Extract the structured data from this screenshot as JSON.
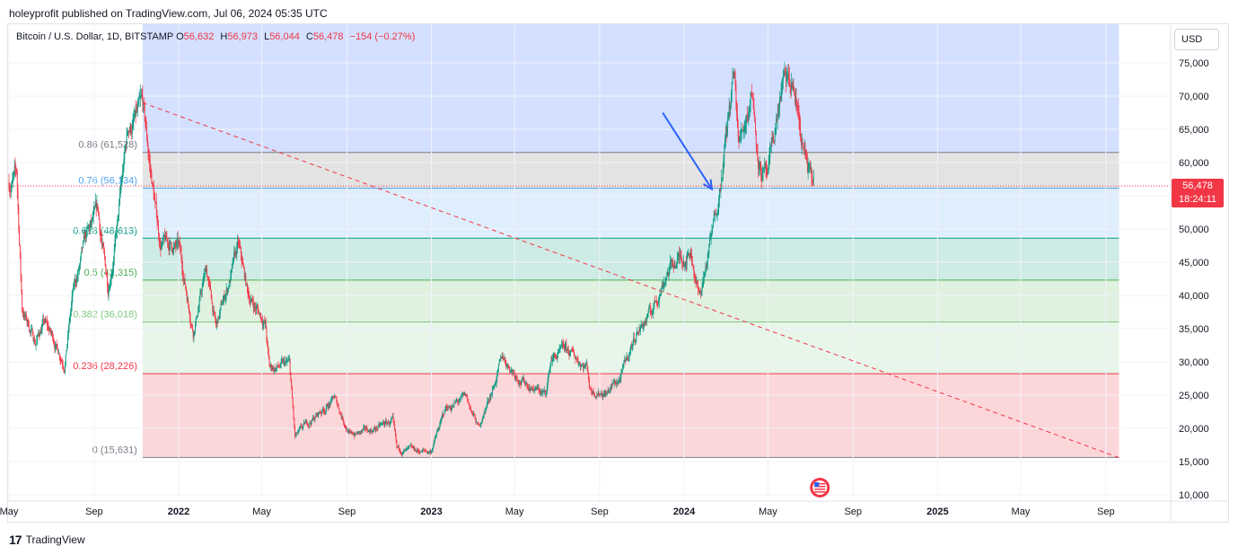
{
  "header": {
    "published_by": "holeyprofit published on TradingView.com, Jul 06, 2024 05:35 UTC"
  },
  "legend": {
    "symbol": "Bitcoin / U.S. Dollar, 1D, BITSTAMP",
    "o_label": "O",
    "o": "56,632",
    "h_label": "H",
    "h": "56,973",
    "l_label": "L",
    "l": "56,044",
    "c_label": "C",
    "c": "56,478",
    "change": "−154 (−0.27%)"
  },
  "currency_button": "USD",
  "price_tag": {
    "price": "56,478",
    "countdown": "18:24:11"
  },
  "footer": {
    "brand": "TradingView",
    "logo_glyph": "17"
  },
  "colors": {
    "up": "#089981",
    "down": "#f23645",
    "arrow": "#2962ff",
    "trendline": "#f23645"
  },
  "chart_data": {
    "type": "candlestick",
    "symbol": "BTCUSD",
    "interval": "1D",
    "ylim": [
      10000,
      78000
    ],
    "y_ticks": [
      10000,
      15000,
      20000,
      25000,
      30000,
      35000,
      40000,
      45000,
      50000,
      55000,
      60000,
      65000,
      70000,
      75000
    ],
    "y_tick_labels": [
      "10,000",
      "15,000",
      "20,000",
      "25,000",
      "30,000",
      "35,000",
      "40,000",
      "45,000",
      "50,000",
      "55,000",
      "60,000",
      "65,000",
      "70,000",
      "75,000"
    ],
    "x_range": [
      "2021-05-01",
      "2025-12-01"
    ],
    "x_ticks": [
      {
        "date": "2021-05-01",
        "label": "May",
        "bold": false
      },
      {
        "date": "2021-09-01",
        "label": "Sep",
        "bold": false
      },
      {
        "date": "2022-01-01",
        "label": "2022",
        "bold": true
      },
      {
        "date": "2022-05-01",
        "label": "May",
        "bold": false
      },
      {
        "date": "2022-09-01",
        "label": "Sep",
        "bold": false
      },
      {
        "date": "2023-01-01",
        "label": "2023",
        "bold": true
      },
      {
        "date": "2023-05-01",
        "label": "May",
        "bold": false
      },
      {
        "date": "2023-09-01",
        "label": "Sep",
        "bold": false
      },
      {
        "date": "2024-01-01",
        "label": "2024",
        "bold": true
      },
      {
        "date": "2024-05-01",
        "label": "May",
        "bold": false
      },
      {
        "date": "2024-09-01",
        "label": "Sep",
        "bold": false
      },
      {
        "date": "2025-01-01",
        "label": "2025",
        "bold": true
      },
      {
        "date": "2025-05-01",
        "label": "May",
        "bold": false
      },
      {
        "date": "2025-09-01",
        "label": "Sep",
        "bold": false
      }
    ],
    "last_price": 56478,
    "price_path": [
      [
        "2021-05-01",
        57000
      ],
      [
        "2021-05-12",
        58000
      ],
      [
        "2021-05-20",
        38000
      ],
      [
        "2021-06-08",
        33000
      ],
      [
        "2021-06-20",
        36000
      ],
      [
        "2021-07-01",
        34000
      ],
      [
        "2021-07-20",
        30000
      ],
      [
        "2021-08-01",
        40000
      ],
      [
        "2021-08-20",
        48000
      ],
      [
        "2021-09-06",
        52000
      ],
      [
        "2021-09-21",
        41000
      ],
      [
        "2021-10-05",
        51000
      ],
      [
        "2021-10-20",
        65000
      ],
      [
        "2021-11-10",
        67500
      ],
      [
        "2021-11-26",
        55000
      ],
      [
        "2021-12-05",
        48000
      ],
      [
        "2022-01-01",
        47000
      ],
      [
        "2022-01-22",
        35000
      ],
      [
        "2022-02-10",
        44000
      ],
      [
        "2022-02-24",
        35000
      ],
      [
        "2022-03-28",
        47000
      ],
      [
        "2022-04-11",
        40000
      ],
      [
        "2022-05-06",
        36000
      ],
      [
        "2022-05-12",
        29000
      ],
      [
        "2022-06-10",
        29500
      ],
      [
        "2022-06-18",
        18500
      ],
      [
        "2022-07-10",
        21000
      ],
      [
        "2022-08-14",
        24500
      ],
      [
        "2022-09-06",
        19000
      ],
      [
        "2022-10-01",
        19500
      ],
      [
        "2022-11-06",
        21000
      ],
      [
        "2022-11-12",
        16500
      ],
      [
        "2022-12-31",
        16500
      ],
      [
        "2023-01-22",
        23000
      ],
      [
        "2023-02-20",
        24500
      ],
      [
        "2023-03-10",
        20000
      ],
      [
        "2023-04-14",
        30500
      ],
      [
        "2023-05-15",
        27000
      ],
      [
        "2023-06-15",
        25000
      ],
      [
        "2023-06-23",
        30500
      ],
      [
        "2023-07-14",
        31500
      ],
      [
        "2023-08-14",
        29500
      ],
      [
        "2023-08-18",
        26000
      ],
      [
        "2023-09-11",
        25500
      ],
      [
        "2023-10-01",
        27500
      ],
      [
        "2023-10-24",
        34500
      ],
      [
        "2023-11-15",
        37500
      ],
      [
        "2023-12-08",
        44000
      ],
      [
        "2024-01-11",
        47000
      ],
      [
        "2024-01-23",
        39500
      ],
      [
        "2024-02-12",
        50000
      ],
      [
        "2024-02-28",
        62000
      ],
      [
        "2024-03-13",
        73000
      ],
      [
        "2024-03-20",
        62500
      ],
      [
        "2024-04-08",
        71500
      ],
      [
        "2024-04-18",
        60500
      ],
      [
        "2024-05-01",
        57000
      ],
      [
        "2024-05-21",
        71500
      ],
      [
        "2024-06-07",
        71000
      ],
      [
        "2024-06-24",
        60500
      ],
      [
        "2024-07-04",
        56000
      ],
      [
        "2024-07-06",
        56478
      ]
    ],
    "fibonacci": {
      "start_date": "2021-11-10",
      "end_date": "2025-09-20",
      "levels": [
        {
          "ratio": "0.86",
          "price": 61528,
          "label": "0.86 (61,528)",
          "color": "#787b86",
          "fill_above": "rgba(41,98,255,0.2)",
          "fill_below": "rgba(128,128,128,0.22)"
        },
        {
          "ratio": "0.76",
          "price": 56134,
          "label": "0.76 (56,134)",
          "color": "#4fa3f0",
          "fill_below": "rgba(79,163,240,0.18)"
        },
        {
          "ratio": "0.618",
          "price": 48613,
          "label": "0.618 (48,613)",
          "color": "#089981",
          "fill_below": "rgba(8,153,129,0.2)"
        },
        {
          "ratio": "0.5",
          "price": 42315,
          "label": "0.5 (42,315)",
          "color": "#4caf50",
          "fill_below": "rgba(76,175,80,0.18)"
        },
        {
          "ratio": "0.382",
          "price": 36018,
          "label": "0.382 (36,018)",
          "color": "#81c784",
          "fill_below": "rgba(129,199,132,0.18)"
        },
        {
          "ratio": "0.236",
          "price": 28226,
          "label": "0.236 (28,226)",
          "color": "#f23645",
          "fill_below": "rgba(242,54,69,0.2)"
        },
        {
          "ratio": "0",
          "price": 15631,
          "label": "0 (15,631)",
          "color": "#787b86"
        }
      ]
    },
    "trendline": {
      "from": [
        "2021-11-10",
        69000
      ],
      "to": [
        "2025-09-20",
        15600
      ],
      "style": "dashed"
    },
    "arrow": {
      "from": [
        "2023-12-01",
        67500
      ],
      "to": [
        "2024-02-10",
        56000
      ]
    },
    "event_marker": {
      "date": "2024-07-15",
      "type": "us-economic-event"
    }
  }
}
